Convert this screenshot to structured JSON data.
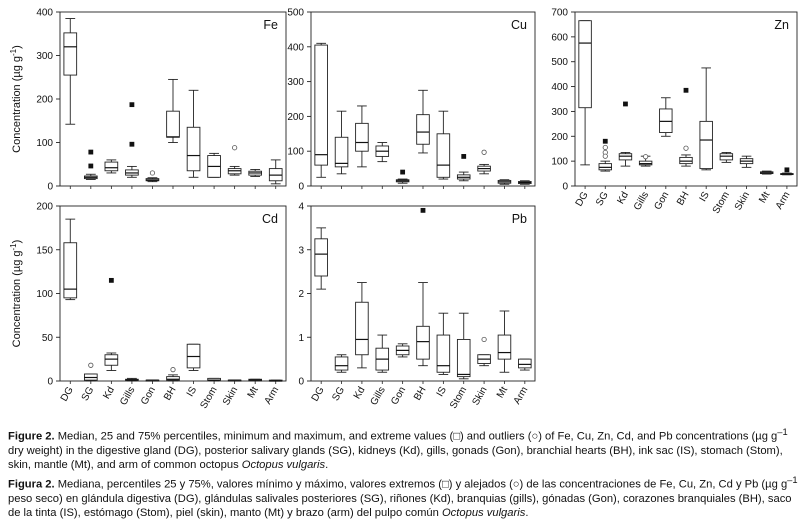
{
  "ylabel": "Concentration (µg g",
  "ylabel_sup": "-1",
  "ylabel_tail": ")",
  "chart_data": [
    {
      "type": "box",
      "panel": "Fe",
      "ylim": [
        0,
        400
      ],
      "yticks": [
        0,
        100,
        200,
        300,
        400
      ],
      "categories": [
        "DG",
        "SG",
        "Kd",
        "Gills",
        "Gon",
        "BH",
        "IS",
        "Stom",
        "Skin",
        "Mt",
        "Arm"
      ],
      "boxes": [
        {
          "min": 142,
          "q1": 255,
          "median": 320,
          "q3": 352,
          "max": 385
        },
        {
          "min": 15,
          "q1": 17,
          "median": 20,
          "q3": 23,
          "max": 27
        },
        {
          "min": 30,
          "q1": 35,
          "median": 42,
          "q3": 55,
          "max": 60
        },
        {
          "min": 20,
          "q1": 25,
          "median": 30,
          "q3": 37,
          "max": 45
        },
        {
          "min": 10,
          "q1": 12,
          "median": 14,
          "q3": 17,
          "max": 19
        },
        {
          "min": 100,
          "q1": 112,
          "median": 113,
          "q3": 172,
          "max": 245
        },
        {
          "min": 20,
          "q1": 35,
          "median": 70,
          "q3": 135,
          "max": 220
        },
        {
          "min": 20,
          "q1": 20,
          "median": 45,
          "q3": 70,
          "max": 75
        },
        {
          "min": 25,
          "q1": 28,
          "median": 35,
          "q3": 40,
          "max": 45
        },
        {
          "min": 22,
          "q1": 25,
          "median": 30,
          "q3": 34,
          "max": 38
        },
        {
          "min": 5,
          "q1": 12,
          "median": 25,
          "q3": 40,
          "max": 60
        }
      ],
      "extremes": [
        {
          "cat": 1,
          "y": 78
        },
        {
          "cat": 1,
          "y": 46
        },
        {
          "cat": 3,
          "y": 187
        },
        {
          "cat": 3,
          "y": 96
        }
      ],
      "outliers": [
        {
          "cat": 4,
          "y": 30
        },
        {
          "cat": 8,
          "y": 88
        }
      ]
    },
    {
      "type": "box",
      "panel": "Cu",
      "ylim": [
        0,
        500
      ],
      "yticks": [
        0,
        100,
        200,
        300,
        400,
        500
      ],
      "categories": [
        "DG",
        "SG",
        "Kd",
        "Gills",
        "Gon",
        "BH",
        "IS",
        "Stom",
        "Skin",
        "Mt",
        "Arm"
      ],
      "boxes": [
        {
          "min": 25,
          "q1": 60,
          "median": 90,
          "q3": 405,
          "max": 410
        },
        {
          "min": 35,
          "q1": 55,
          "median": 65,
          "q3": 140,
          "max": 215
        },
        {
          "min": 55,
          "q1": 100,
          "median": 125,
          "q3": 180,
          "max": 230
        },
        {
          "min": 70,
          "q1": 85,
          "median": 100,
          "q3": 115,
          "max": 125
        },
        {
          "min": 8,
          "q1": 12,
          "median": 15,
          "q3": 18,
          "max": 20
        },
        {
          "min": 95,
          "q1": 120,
          "median": 155,
          "q3": 205,
          "max": 275
        },
        {
          "min": 20,
          "q1": 25,
          "median": 60,
          "q3": 150,
          "max": 215
        },
        {
          "min": 15,
          "q1": 20,
          "median": 25,
          "q3": 32,
          "max": 40
        },
        {
          "min": 35,
          "q1": 43,
          "median": 50,
          "q3": 57,
          "max": 62
        },
        {
          "min": 5,
          "q1": 8,
          "median": 12,
          "q3": 16,
          "max": 18
        },
        {
          "min": 5,
          "q1": 7,
          "median": 10,
          "q3": 13,
          "max": 15
        }
      ],
      "extremes": [
        {
          "cat": 4,
          "y": 40
        },
        {
          "cat": 7,
          "y": 85
        }
      ],
      "outliers": [
        {
          "cat": 8,
          "y": 97
        }
      ]
    },
    {
      "type": "box",
      "panel": "Zn",
      "ylim": [
        0,
        700
      ],
      "yticks": [
        0,
        100,
        200,
        300,
        400,
        500,
        600,
        700
      ],
      "categories": [
        "DG",
        "SG",
        "Kd",
        "Gills",
        "Gon",
        "BH",
        "IS",
        "Stom",
        "Skin",
        "Mt",
        "Arm"
      ],
      "boxes": [
        {
          "min": 85,
          "q1": 315,
          "median": 575,
          "q3": 665,
          "max": 665
        },
        {
          "min": 60,
          "q1": 65,
          "median": 75,
          "q3": 90,
          "max": 100
        },
        {
          "min": 80,
          "q1": 105,
          "median": 120,
          "q3": 130,
          "max": 135
        },
        {
          "min": 80,
          "q1": 85,
          "median": 90,
          "q3": 100,
          "max": 120
        },
        {
          "min": 200,
          "q1": 215,
          "median": 260,
          "q3": 310,
          "max": 355
        },
        {
          "min": 80,
          "q1": 90,
          "median": 100,
          "q3": 115,
          "max": 125
        },
        {
          "min": 65,
          "q1": 70,
          "median": 185,
          "q3": 260,
          "max": 475
        },
        {
          "min": 95,
          "q1": 105,
          "median": 120,
          "q3": 130,
          "max": 135
        },
        {
          "min": 75,
          "q1": 90,
          "median": 100,
          "q3": 110,
          "max": 120
        },
        {
          "min": 48,
          "q1": 50,
          "median": 53,
          "q3": 57,
          "max": 60
        },
        {
          "min": 45,
          "q1": 47,
          "median": 48,
          "q3": 50,
          "max": 52
        }
      ],
      "extremes": [
        {
          "cat": 1,
          "y": 180
        },
        {
          "cat": 2,
          "y": 330
        },
        {
          "cat": 5,
          "y": 385
        },
        {
          "cat": 10,
          "y": 65
        }
      ],
      "outliers": [
        {
          "cat": 1,
          "y": 155
        },
        {
          "cat": 1,
          "y": 135
        },
        {
          "cat": 1,
          "y": 120
        },
        {
          "cat": 5,
          "y": 152
        },
        {
          "cat": 3,
          "y": 118
        }
      ]
    },
    {
      "type": "box",
      "panel": "Cd",
      "ylim": [
        0,
        200
      ],
      "yticks": [
        0,
        50,
        100,
        150,
        200
      ],
      "categories": [
        "DG",
        "SG",
        "Kd",
        "Gills",
        "Gon",
        "BH",
        "IS",
        "Stom",
        "Skin",
        "Mt",
        "Arm"
      ],
      "boxes": [
        {
          "min": 93,
          "q1": 95,
          "median": 105,
          "q3": 158,
          "max": 185
        },
        {
          "min": 0,
          "q1": 1,
          "median": 4,
          "q3": 8,
          "max": 8
        },
        {
          "min": 12,
          "q1": 18,
          "median": 25,
          "q3": 30,
          "max": 32
        },
        {
          "min": 0,
          "q1": 1,
          "median": 1,
          "q3": 2,
          "max": 3
        },
        {
          "min": 0,
          "q1": 0,
          "median": 1,
          "q3": 1,
          "max": 1
        },
        {
          "min": 0,
          "q1": 1,
          "median": 2,
          "q3": 5,
          "max": 7
        },
        {
          "min": 12,
          "q1": 15,
          "median": 28,
          "q3": 42,
          "max": 42
        },
        {
          "min": 0,
          "q1": 1,
          "median": 1,
          "q3": 3,
          "max": 3
        },
        {
          "min": 0,
          "q1": 0,
          "median": 1,
          "q3": 1,
          "max": 1
        },
        {
          "min": 0,
          "q1": 0,
          "median": 1,
          "q3": 2,
          "max": 2
        },
        {
          "min": 0,
          "q1": 0,
          "median": 0,
          "q3": 1,
          "max": 1
        }
      ],
      "extremes": [
        {
          "cat": 2,
          "y": 115
        }
      ],
      "outliers": [
        {
          "cat": 1,
          "y": 18
        },
        {
          "cat": 5,
          "y": 13
        }
      ]
    },
    {
      "type": "box",
      "panel": "Pb",
      "ylim": [
        0,
        4
      ],
      "yticks": [
        0,
        1,
        2,
        3,
        4
      ],
      "categories": [
        "DG",
        "SG",
        "Kd",
        "Gills",
        "Gon",
        "BH",
        "IS",
        "Stom",
        "Skin",
        "Mt",
        "Arm"
      ],
      "boxes": [
        {
          "min": 2.1,
          "q1": 2.4,
          "median": 2.9,
          "q3": 3.25,
          "max": 3.5
        },
        {
          "min": 0.2,
          "q1": 0.25,
          "median": 0.35,
          "q3": 0.55,
          "max": 0.6
        },
        {
          "min": 0.3,
          "q1": 0.6,
          "median": 0.95,
          "q3": 1.8,
          "max": 2.25
        },
        {
          "min": 0.2,
          "q1": 0.25,
          "median": 0.5,
          "q3": 0.75,
          "max": 1.05
        },
        {
          "min": 0.55,
          "q1": 0.6,
          "median": 0.7,
          "q3": 0.8,
          "max": 0.85
        },
        {
          "min": 0.35,
          "q1": 0.5,
          "median": 0.9,
          "q3": 1.25,
          "max": 2.25
        },
        {
          "min": 0.15,
          "q1": 0.2,
          "median": 0.35,
          "q3": 1.05,
          "max": 1.55
        },
        {
          "min": 0.05,
          "q1": 0.1,
          "median": 0.15,
          "q3": 0.95,
          "max": 1.55
        },
        {
          "min": 0.35,
          "q1": 0.4,
          "median": 0.5,
          "q3": 0.6,
          "max": 0.6
        },
        {
          "min": 0.2,
          "q1": 0.5,
          "median": 0.65,
          "q3": 1.05,
          "max": 1.6
        },
        {
          "min": 0.25,
          "q1": 0.3,
          "median": 0.38,
          "q3": 0.5,
          "max": 0.5
        }
      ],
      "extremes": [
        {
          "cat": 5,
          "y": 3.9
        }
      ],
      "outliers": [
        {
          "cat": 8,
          "y": 0.95
        }
      ]
    }
  ],
  "caption_en": {
    "label": "Figure 2.",
    "part1": " Median, 25 and 75% percentiles, minimum and maximum, and extreme values (□) and outliers (○) of Fe, Cu, Zn, Cd, and Pb concentrations (µg g",
    "sup1": "–1",
    "part2": " dry weight) in the digestive gland (DG), posterior salivary glands (SG), kidneys (Kd), gills, gonads (Gon), branchial hearts (BH), ink sac (IS), stomach (Stom), skin, mantle (Mt), and arm of common octopus ",
    "species": "Octopus vulgaris",
    "end": "."
  },
  "caption_es": {
    "label": "Figura 2.",
    "part1": " Mediana, percentiles 25 y 75%, valores mínimo y máximo, valores extremos (□) y alejados (○) de las concentraciones de Fe, Cu, Zn, Cd y Pb (µg g",
    "sup1": "–1",
    "part2": " peso seco) en glándula digestiva (DG), glándulas salivales posteriores (SG), riñones (Kd), branquias (gills), gónadas (Gon), corazones branquiales (BH), saco de la tinta (IS), estómago (Stom), piel (skin), manto (Mt) y brazo (arm) del pulpo común ",
    "species": "Octopus vulgaris",
    "end": "."
  }
}
